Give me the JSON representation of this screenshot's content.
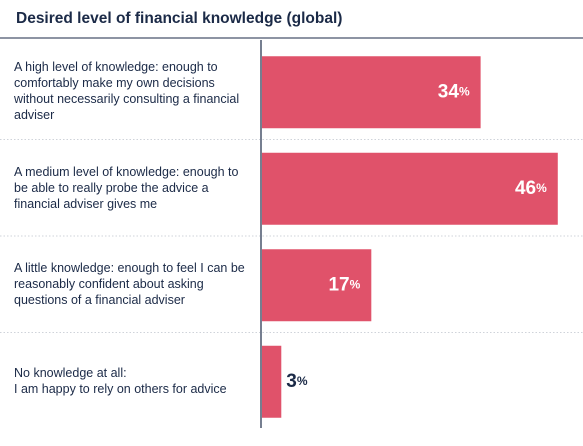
{
  "chart_data": {
    "type": "hbar",
    "title": "Desired level of financial knowledge (global)",
    "categories": [
      "A high level of knowledge: enough to comfortably make my own decisions without necessarily consulting a financial adviser",
      "A medium level of knowledge: enough to be able to really probe the advice a financial adviser gives me",
      "A little knowledge: enough to feel I can be reasonably confident about asking questions of a financial adviser",
      "No knowledge at all:\nI am happy to rely on others for advice"
    ],
    "values": [
      34,
      46,
      17,
      3
    ],
    "value_labels": [
      "34%",
      "46%",
      "17%",
      "3%"
    ],
    "color": "#e0526a"
  }
}
